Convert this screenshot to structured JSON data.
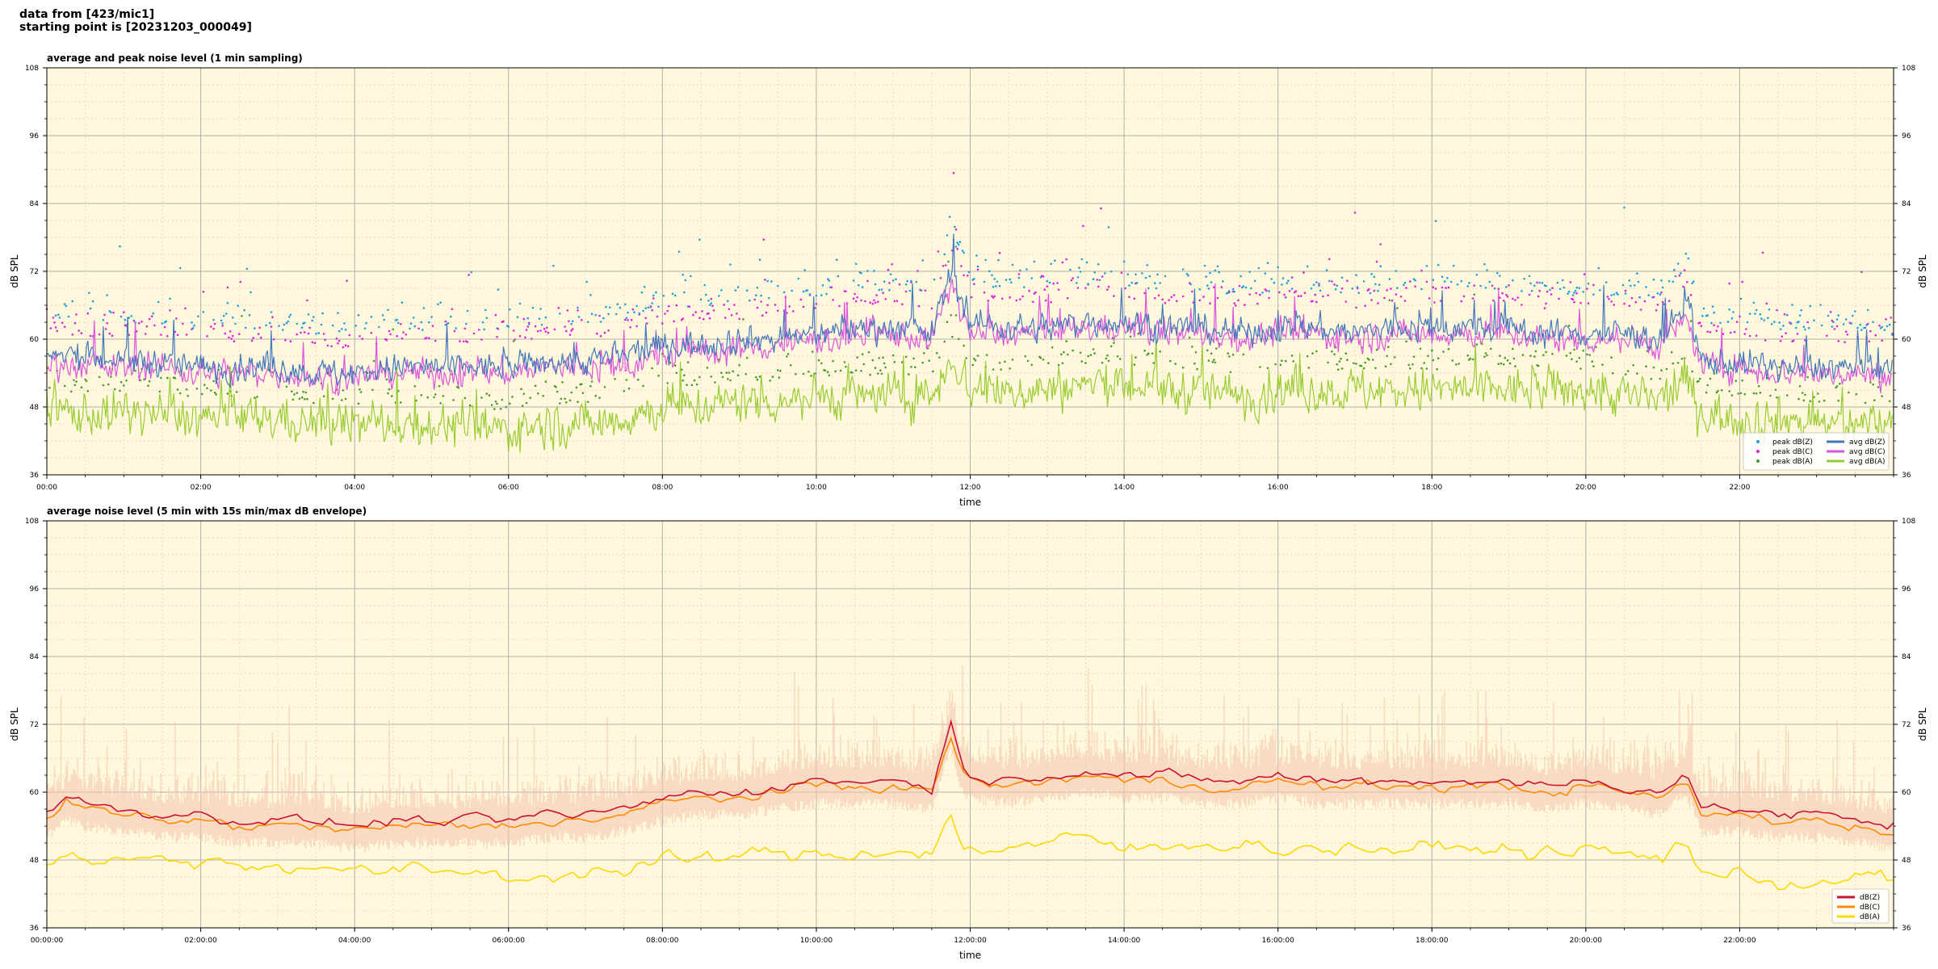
{
  "header": {
    "line1": "data from [423/mic1]",
    "line2": "starting point is [20231203_000049]"
  },
  "colors": {
    "background": "#fff8dc",
    "grid_major": "#b0b0b0",
    "grid_minor": "#e6dcc0",
    "peak_z": "#1f9fe0",
    "peak_c": "#e020e0",
    "peak_a": "#4a9a30",
    "avg_z": "#4477bb",
    "avg_c": "#dd55dd",
    "avg_a": "#99cc33",
    "env_z": "#cc1133",
    "env_c": "#ff8c00",
    "env_a": "#ffd700",
    "envelope_fill": "#f4c2b0"
  },
  "chart_data": [
    {
      "type": "line",
      "title": "average and peak noise level (1 min sampling)",
      "xlabel": "time",
      "ylabel": "dB SPL",
      "ylabel_right": "dB SPL",
      "xlim": [
        0,
        24
      ],
      "ylim": [
        36,
        108
      ],
      "yticks": [
        36,
        48,
        60,
        72,
        84,
        96,
        108
      ],
      "xtick_labels": [
        "00:00",
        "02:00",
        "04:00",
        "06:00",
        "08:00",
        "10:00",
        "12:00",
        "14:00",
        "16:00",
        "18:00",
        "20:00",
        "22:00"
      ],
      "xtick_hours": [
        0,
        2,
        4,
        6,
        8,
        10,
        12,
        14,
        16,
        18,
        20,
        22
      ],
      "grid": true,
      "legend_position": "bottom-right",
      "legend": [
        {
          "label": "peak dB(Z)",
          "kind": "dot",
          "color_key": "peak_z"
        },
        {
          "label": "peak dB(C)",
          "kind": "dot",
          "color_key": "peak_c"
        },
        {
          "label": "peak dB(A)",
          "kind": "dot",
          "color_key": "peak_a"
        },
        {
          "label": "avg dB(Z)",
          "kind": "line",
          "color_key": "avg_z"
        },
        {
          "label": "avg dB(C)",
          "kind": "line",
          "color_key": "avg_c"
        },
        {
          "label": "avg dB(A)",
          "kind": "line",
          "color_key": "avg_a"
        }
      ],
      "series_profiles": {
        "hours": [
          0,
          0.5,
          1,
          1.5,
          2,
          2.5,
          3,
          3.5,
          4,
          4.5,
          5,
          5.5,
          6,
          6.5,
          7,
          7.5,
          8,
          8.5,
          9,
          9.5,
          10,
          10.5,
          11,
          11.5,
          11.75,
          12,
          12.5,
          13,
          13.5,
          14,
          14.5,
          15,
          15.5,
          16,
          16.5,
          17,
          17.5,
          18,
          18.5,
          19,
          19.5,
          20,
          20.5,
          21,
          21.3,
          21.5,
          22,
          22.5,
          23,
          23.5,
          24
        ],
        "avg_z": [
          57,
          57,
          56,
          56,
          55,
          55,
          55,
          54,
          54,
          55,
          55,
          55,
          55,
          56,
          56,
          57,
          59,
          59,
          60,
          60,
          61,
          62,
          62,
          61,
          72,
          63,
          62,
          62,
          63,
          63,
          62,
          62,
          61,
          62,
          62,
          61,
          62,
          62,
          62,
          62,
          61,
          61,
          61,
          60,
          66,
          56,
          56,
          55,
          55,
          55,
          54
        ],
        "avg_c": [
          56,
          55,
          55,
          55,
          54,
          54,
          54,
          53,
          53,
          54,
          54,
          54,
          54,
          55,
          55,
          55,
          57,
          58,
          58,
          59,
          60,
          60,
          61,
          60,
          70,
          61,
          61,
          61,
          62,
          62,
          61,
          61,
          60,
          61,
          61,
          60,
          61,
          61,
          61,
          61,
          60,
          60,
          60,
          59,
          64,
          55,
          55,
          54,
          54,
          54,
          53
        ],
        "avg_a": [
          47,
          47,
          47,
          47,
          46,
          46,
          46,
          45,
          45,
          45,
          45,
          44,
          44,
          45,
          45,
          46,
          48,
          48,
          49,
          49,
          50,
          50,
          50,
          50,
          57,
          51,
          51,
          51,
          52,
          52,
          51,
          51,
          50,
          51,
          51,
          51,
          51,
          51,
          51,
          51,
          51,
          51,
          50,
          49,
          53,
          47,
          46,
          46,
          45,
          45,
          45
        ]
      }
    },
    {
      "type": "line",
      "title": "average noise level (5 min with 15s min/max dB envelope)",
      "xlabel": "time",
      "ylabel": "dB SPL",
      "ylabel_right": "dB SPL",
      "xlim": [
        0,
        24
      ],
      "ylim": [
        36,
        108
      ],
      "yticks": [
        36,
        48,
        60,
        72,
        84,
        96,
        108
      ],
      "xtick_labels": [
        "00:00:00",
        "02:00:00",
        "04:00:00",
        "06:00:00",
        "08:00:00",
        "10:00:00",
        "12:00:00",
        "14:00:00",
        "16:00:00",
        "18:00:00",
        "20:00:00",
        "22:00:00"
      ],
      "xtick_hours": [
        0,
        2,
        4,
        6,
        8,
        10,
        12,
        14,
        16,
        18,
        20,
        22
      ],
      "grid": true,
      "legend_position": "bottom-right",
      "legend": [
        {
          "label": "dB(Z)",
          "kind": "line",
          "color_key": "env_z"
        },
        {
          "label": "dB(C)",
          "kind": "line",
          "color_key": "env_c"
        },
        {
          "label": "dB(A)",
          "kind": "line",
          "color_key": "env_a"
        }
      ],
      "series_profiles": {
        "hours": [
          0,
          0.25,
          0.5,
          1,
          1.5,
          2,
          2.5,
          3,
          3.5,
          4,
          4.5,
          5,
          5.5,
          6,
          6.5,
          7,
          7.5,
          8,
          8.5,
          9,
          9.5,
          10,
          10.5,
          11,
          11.5,
          11.75,
          11.9,
          12,
          12.5,
          13,
          13.5,
          14,
          14.5,
          15,
          15.5,
          16,
          16.5,
          17,
          17.5,
          18,
          18.5,
          19,
          19.5,
          20,
          20.5,
          21,
          21.3,
          21.5,
          22,
          22.5,
          23,
          23.5,
          24
        ],
        "avg_z": [
          56,
          59,
          58,
          57,
          56,
          56,
          55,
          55,
          55,
          54,
          55,
          55,
          55,
          55,
          56,
          56,
          57,
          59,
          60,
          60,
          61,
          62,
          62,
          62,
          61,
          72,
          64,
          63,
          62,
          63,
          64,
          63,
          63,
          62,
          62,
          63,
          62,
          62,
          62,
          62,
          62,
          62,
          61,
          62,
          61,
          60,
          64,
          57,
          57,
          56,
          56,
          55,
          54
        ],
        "avg_c": [
          55,
          58,
          57,
          56,
          55,
          55,
          54,
          54,
          54,
          53,
          54,
          54,
          54,
          54,
          55,
          55,
          56,
          58,
          59,
          59,
          60,
          61,
          61,
          61,
          60,
          70,
          63,
          62,
          61,
          62,
          63,
          62,
          62,
          61,
          61,
          62,
          61,
          61,
          61,
          61,
          61,
          61,
          60,
          61,
          60,
          59,
          62,
          56,
          56,
          55,
          55,
          54,
          53
        ],
        "avg_a": [
          47,
          49,
          48,
          48,
          48,
          48,
          47,
          47,
          47,
          46,
          46,
          46,
          46,
          45,
          45,
          46,
          46,
          48,
          48,
          49,
          49,
          49,
          49,
          50,
          49,
          56,
          50,
          50,
          50,
          51,
          52,
          50,
          50,
          51,
          51,
          50,
          50,
          50,
          50,
          50,
          50,
          50,
          49,
          50,
          49,
          48,
          52,
          46,
          45,
          44,
          44,
          45,
          45
        ]
      }
    }
  ]
}
